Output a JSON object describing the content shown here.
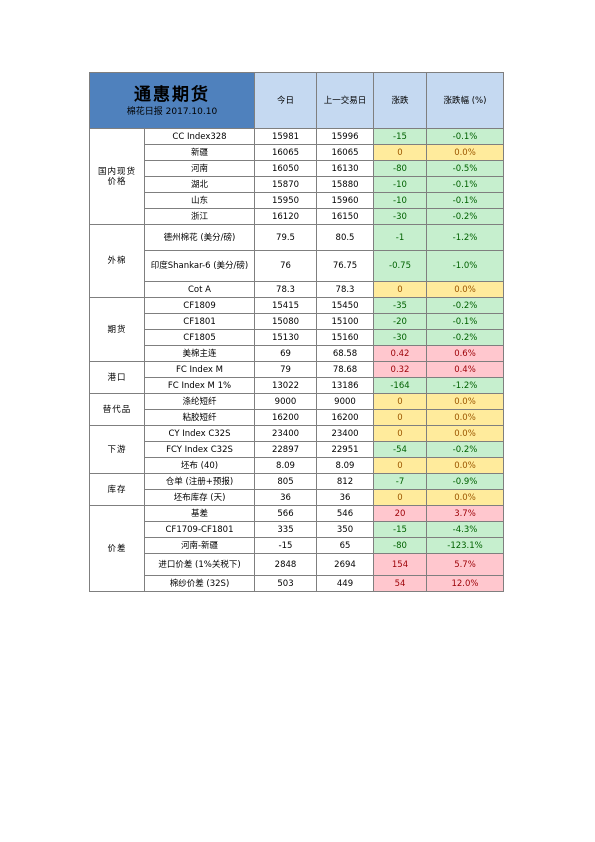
{
  "header": {
    "title": "通惠期货",
    "subtitle": "棉花日报 2017.10.10",
    "col_today": "今日",
    "col_prev": "上一交易日",
    "col_change": "涨跌",
    "col_pct": "涨跌幅 (%)"
  },
  "groups": [
    {
      "label": "国内现货价格",
      "rows": [
        {
          "item": "CC Index328",
          "today": "15981",
          "prev": "15996",
          "change": "-15",
          "pct": "-0.1%",
          "color": "green"
        },
        {
          "item": "新疆",
          "today": "16065",
          "prev": "16065",
          "change": "0",
          "pct": "0.0%",
          "color": "yellow"
        },
        {
          "item": "河南",
          "today": "16050",
          "prev": "16130",
          "change": "-80",
          "pct": "-0.5%",
          "color": "green"
        },
        {
          "item": "湖北",
          "today": "15870",
          "prev": "15880",
          "change": "-10",
          "pct": "-0.1%",
          "color": "green"
        },
        {
          "item": "山东",
          "today": "15950",
          "prev": "15960",
          "change": "-10",
          "pct": "-0.1%",
          "color": "green"
        },
        {
          "item": "浙江",
          "today": "16120",
          "prev": "16150",
          "change": "-30",
          "pct": "-0.2%",
          "color": "green"
        }
      ]
    },
    {
      "label": "外棉",
      "rows": [
        {
          "item": "德州棉花 (美分/磅)",
          "today": "79.5",
          "prev": "80.5",
          "change": "-1",
          "pct": "-1.2%",
          "color": "green"
        },
        {
          "item": "印度Shankar-6 (美分/磅)",
          "today": "76",
          "prev": "76.75",
          "change": "-0.75",
          "pct": "-1.0%",
          "color": "green"
        },
        {
          "item": "Cot A",
          "today": "78.3",
          "prev": "78.3",
          "change": "0",
          "pct": "0.0%",
          "color": "yellow"
        }
      ]
    },
    {
      "label": "期货",
      "rows": [
        {
          "item": "CF1809",
          "today": "15415",
          "prev": "15450",
          "change": "-35",
          "pct": "-0.2%",
          "color": "green"
        },
        {
          "item": "CF1801",
          "today": "15080",
          "prev": "15100",
          "change": "-20",
          "pct": "-0.1%",
          "color": "green"
        },
        {
          "item": "CF1805",
          "today": "15130",
          "prev": "15160",
          "change": "-30",
          "pct": "-0.2%",
          "color": "green"
        },
        {
          "item": "美棉主连",
          "today": "69",
          "prev": "68.58",
          "change": "0.42",
          "pct": "0.6%",
          "color": "red"
        }
      ]
    },
    {
      "label": "港口",
      "rows": [
        {
          "item": "FC Index M",
          "today": "79",
          "prev": "78.68",
          "change": "0.32",
          "pct": "0.4%",
          "color": "red"
        },
        {
          "item": "FC Index M 1%",
          "today": "13022",
          "prev": "13186",
          "change": "-164",
          "pct": "-1.2%",
          "color": "green"
        }
      ]
    },
    {
      "label": "替代品",
      "rows": [
        {
          "item": "涤纶短纤",
          "today": "9000",
          "prev": "9000",
          "change": "0",
          "pct": "0.0%",
          "color": "yellow"
        },
        {
          "item": "粘胶短纤",
          "today": "16200",
          "prev": "16200",
          "change": "0",
          "pct": "0.0%",
          "color": "yellow"
        }
      ]
    },
    {
      "label": "下游",
      "rows": [
        {
          "item": "CY Index C32S",
          "today": "23400",
          "prev": "23400",
          "change": "0",
          "pct": "0.0%",
          "color": "yellow"
        },
        {
          "item": "FCY Index C32S",
          "today": "22897",
          "prev": "22951",
          "change": "-54",
          "pct": "-0.2%",
          "color": "green"
        },
        {
          "item": "坯布 (40)",
          "today": "8.09",
          "prev": "8.09",
          "change": "0",
          "pct": "0.0%",
          "color": "yellow"
        }
      ]
    },
    {
      "label": "库存",
      "rows": [
        {
          "item": "仓单 (注册+预报)",
          "today": "805",
          "prev": "812",
          "change": "-7",
          "pct": "-0.9%",
          "color": "green"
        },
        {
          "item": "坯布库存 (天)",
          "today": "36",
          "prev": "36",
          "change": "0",
          "pct": "0.0%",
          "color": "yellow"
        }
      ]
    },
    {
      "label": "价差",
      "rows": [
        {
          "item": "基差",
          "today": "566",
          "prev": "546",
          "change": "20",
          "pct": "3.7%",
          "color": "red"
        },
        {
          "item": "CF1709-CF1801",
          "today": "335",
          "prev": "350",
          "change": "-15",
          "pct": "-4.3%",
          "color": "green"
        },
        {
          "item": "河南-新疆",
          "today": "-15",
          "prev": "65",
          "change": "-80",
          "pct": "-123.1%",
          "color": "green"
        },
        {
          "item": "进口价差 (1%关税下)",
          "today": "2848",
          "prev": "2694",
          "change": "154",
          "pct": "5.7%",
          "color": "red"
        },
        {
          "item": "棉纱价差 (32S)",
          "today": "503",
          "prev": "449",
          "change": "54",
          "pct": "12.0%",
          "color": "red"
        }
      ]
    }
  ]
}
